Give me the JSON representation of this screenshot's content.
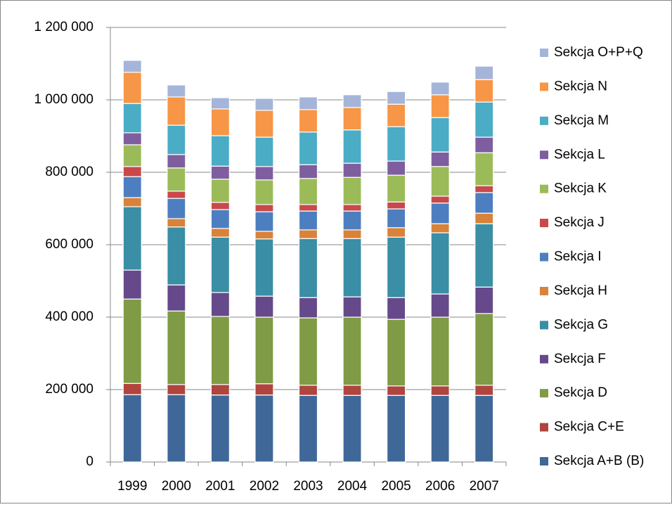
{
  "chart_data": {
    "type": "stacked_bar",
    "categories": [
      "1999",
      "2000",
      "2001",
      "2002",
      "2003",
      "2004",
      "2005",
      "2006",
      "2007"
    ],
    "series": [
      {
        "name": "Sekcja A+B (B)",
        "color": "#3f6899",
        "values": [
          186000,
          186000,
          185000,
          185000,
          184000,
          184000,
          184000,
          184000,
          184000
        ]
      },
      {
        "name": "Sekcja C+E",
        "color": "#b0443f",
        "values": [
          31000,
          28000,
          29000,
          31000,
          28000,
          28000,
          26000,
          26000,
          28000
        ]
      },
      {
        "name": "Sekcja D",
        "color": "#7f9b45",
        "values": [
          233000,
          203000,
          188000,
          184000,
          186000,
          188000,
          184000,
          190000,
          198000
        ]
      },
      {
        "name": "Sekcja F",
        "color": "#66498a",
        "values": [
          80000,
          72000,
          66000,
          58000,
          56000,
          56000,
          60000,
          64000,
          73000
        ]
      },
      {
        "name": "Sekcja G",
        "color": "#3a8ea5",
        "values": [
          175000,
          160000,
          153000,
          158000,
          163000,
          161000,
          167000,
          169000,
          175000
        ]
      },
      {
        "name": "Sekcja H",
        "color": "#d9823a",
        "values": [
          25000,
          23000,
          24000,
          21000,
          24000,
          24000,
          26000,
          25000,
          29000
        ]
      },
      {
        "name": "Sekcja I",
        "color": "#4d7fc0",
        "values": [
          58000,
          56000,
          52000,
          54000,
          52000,
          52000,
          52000,
          57000,
          57000
        ]
      },
      {
        "name": "Sekcja J",
        "color": "#c9494b",
        "values": [
          28000,
          20000,
          20000,
          20000,
          18000,
          18000,
          19000,
          19000,
          19000
        ]
      },
      {
        "name": "Sekcja K",
        "color": "#9bbb59",
        "values": [
          60000,
          64000,
          64000,
          68000,
          72000,
          75000,
          74000,
          82000,
          91000
        ]
      },
      {
        "name": "Sekcja L",
        "color": "#7f5ea0",
        "values": [
          33000,
          37000,
          36000,
          37000,
          38000,
          39000,
          39000,
          40000,
          43000
        ]
      },
      {
        "name": "Sekcja M",
        "color": "#4bacc6",
        "values": [
          81000,
          81000,
          84000,
          81000,
          90000,
          92000,
          95000,
          95000,
          97000
        ]
      },
      {
        "name": "Sekcja N",
        "color": "#f79646",
        "values": [
          86000,
          78000,
          74000,
          74000,
          62000,
          62000,
          62000,
          63000,
          62000
        ]
      },
      {
        "name": "Sekcja O+P+Q",
        "color": "#a5b5d9",
        "values": [
          33000,
          33000,
          31000,
          33000,
          35000,
          35000,
          35000,
          35000,
          37000
        ]
      }
    ],
    "ylim": [
      0,
      1200000
    ],
    "yticks": [
      0,
      {
        "value": 200000,
        "label": "200 000"
      },
      {
        "value": 400000,
        "label": "400 000"
      },
      {
        "value": 600000,
        "label": "600 000"
      },
      {
        "value": 800000,
        "label": "800 000"
      },
      {
        "value": 1000000,
        "label": "1 000 000"
      },
      {
        "value": 1200000,
        "label": "1 200 000"
      }
    ],
    "grid": true
  }
}
